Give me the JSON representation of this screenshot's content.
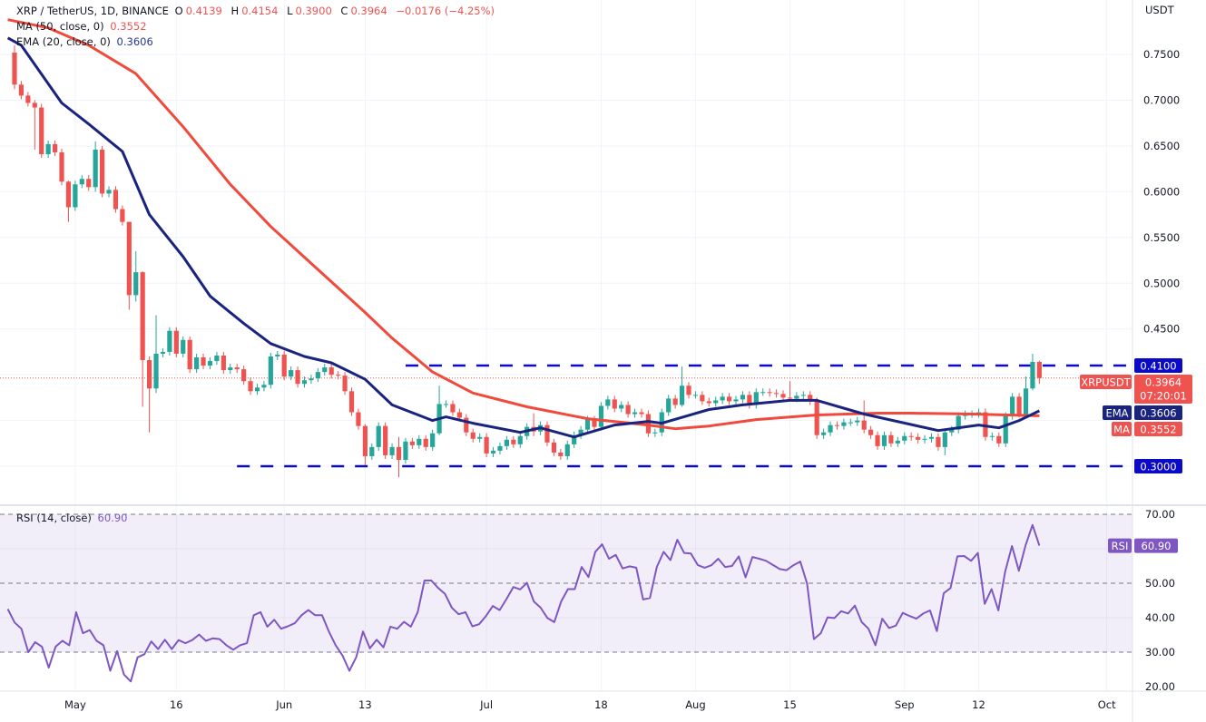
{
  "legend": {
    "symbol": "XRP / TetherUS, 1D, BINANCE",
    "o_label": "O",
    "o": "0.4139",
    "h_label": "H",
    "h": "0.4154",
    "l_label": "L",
    "l": "0.3900",
    "c_label": "C",
    "c": "0.3964",
    "change": "−0.0176 (−4.25%)",
    "ma_label": "MA (50, close, 0)",
    "ma_value": "0.3552",
    "ema_label": "EMA (20, close, 0)",
    "ema_value": "0.3606",
    "rsi_label": "RSI (14, close)",
    "rsi_value": "60.90"
  },
  "axis": {
    "currency": "USDT",
    "price_ticks": [
      {
        "label": "0.7500",
        "value": 0.75
      },
      {
        "label": "0.7000",
        "value": 0.7
      },
      {
        "label": "0.6500",
        "value": 0.65
      },
      {
        "label": "0.6000",
        "value": 0.6
      },
      {
        "label": "0.5500",
        "value": 0.55
      },
      {
        "label": "0.5000",
        "value": 0.5
      },
      {
        "label": "0.4500",
        "value": 0.45
      }
    ],
    "price_grid": [
      0.75,
      0.7,
      0.65,
      0.6,
      0.55,
      0.5,
      0.45,
      0.4,
      0.35,
      0.3
    ],
    "rsi_ticks": [
      {
        "label": "70.00",
        "value": 70
      },
      {
        "label": "50.00",
        "value": 50
      },
      {
        "label": "40.00",
        "value": 40
      },
      {
        "label": "30.00",
        "value": 30
      },
      {
        "label": "20.00",
        "value": 20
      }
    ],
    "x_ticks": [
      {
        "label": "May",
        "day": 9
      },
      {
        "label": "16",
        "day": 24
      },
      {
        "label": "Jun",
        "day": 40
      },
      {
        "label": "13",
        "day": 52
      },
      {
        "label": "Jul",
        "day": 70
      },
      {
        "label": "18",
        "day": 87
      },
      {
        "label": "Aug",
        "day": 101
      },
      {
        "label": "15",
        "day": 115
      },
      {
        "label": "Sep",
        "day": 132
      },
      {
        "label": "12",
        "day": 143
      },
      {
        "label": "Oct",
        "day": 162
      }
    ]
  },
  "badges": {
    "resistance": {
      "label": "0.4100",
      "value": 0.41
    },
    "support": {
      "label": "0.3000",
      "value": 0.3
    },
    "symbol": "XRPUSDT",
    "last_price": {
      "label": "0.3964",
      "value": 0.3964
    },
    "countdown": "07:20:01",
    "ema": {
      "name": "EMA",
      "label": "0.3606",
      "value": 0.3606
    },
    "ma": {
      "name": "MA",
      "label": "0.3552",
      "value": 0.3552
    },
    "rsi": {
      "name": "RSI",
      "label": "60.90",
      "value": 60.9
    }
  },
  "colors": {
    "up": "#26a69a",
    "down": "#ef5350",
    "ma": "#ef4a3c",
    "ema": "#1a237e",
    "level": "#0a0ac8",
    "rsi": "#7e57c2",
    "grid": "#f0f3fa"
  },
  "chart_data": {
    "type": "candlestick",
    "title": "XRP / TetherUS, 1D, BINANCE",
    "interval": "1D",
    "start_date": "Apr 22",
    "end_date": "Sep 21",
    "ylim": [
      0.28,
      0.8
    ],
    "first_open": 0.752,
    "default_wick": 0.004,
    "close": [
      0.717,
      0.705,
      0.697,
      0.692,
      0.641,
      0.652,
      0.643,
      0.611,
      0.583,
      0.608,
      0.614,
      0.605,
      0.646,
      0.598,
      0.602,
      0.581,
      0.567,
      0.487,
      0.512,
      0.416,
      0.385,
      0.423,
      0.425,
      0.448,
      0.423,
      0.438,
      0.406,
      0.419,
      0.41,
      0.415,
      0.421,
      0.405,
      0.408,
      0.406,
      0.393,
      0.382,
      0.386,
      0.389,
      0.42,
      0.422,
      0.398,
      0.405,
      0.39,
      0.394,
      0.396,
      0.403,
      0.408,
      0.4,
      0.399,
      0.382,
      0.359,
      0.344,
      0.311,
      0.321,
      0.344,
      0.312,
      0.321,
      0.307,
      0.327,
      0.323,
      0.33,
      0.321,
      0.336,
      0.368,
      0.368,
      0.359,
      0.353,
      0.337,
      0.33,
      0.332,
      0.314,
      0.317,
      0.322,
      0.329,
      0.324,
      0.333,
      0.343,
      0.338,
      0.345,
      0.326,
      0.315,
      0.311,
      0.324,
      0.334,
      0.34,
      0.351,
      0.343,
      0.366,
      0.373,
      0.363,
      0.367,
      0.357,
      0.359,
      0.357,
      0.336,
      0.337,
      0.359,
      0.374,
      0.367,
      0.388,
      0.378,
      0.378,
      0.371,
      0.369,
      0.372,
      0.376,
      0.371,
      0.373,
      0.378,
      0.367,
      0.381,
      0.381,
      0.38,
      0.379,
      0.375,
      0.374,
      0.377,
      0.378,
      0.371,
      0.334,
      0.337,
      0.345,
      0.344,
      0.348,
      0.348,
      0.35,
      0.34,
      0.334,
      0.322,
      0.334,
      0.325,
      0.328,
      0.333,
      0.332,
      0.329,
      0.33,
      0.332,
      0.321,
      0.337,
      0.34,
      0.355,
      0.357,
      0.357,
      0.359,
      0.332,
      0.333,
      0.325,
      0.355,
      0.376,
      0.357,
      0.385,
      0.414,
      0.3964
    ],
    "wick_overrides": {
      "0": [
        0.76,
        0.712
      ],
      "3": [
        0.7,
        0.646
      ],
      "8": [
        0.612,
        0.567
      ],
      "12": [
        0.655,
        0.6
      ],
      "17": [
        0.567,
        0.471
      ],
      "18": [
        0.535,
        0.48
      ],
      "19": [
        0.513,
        0.365
      ],
      "20": [
        0.42,
        0.337
      ],
      "21": [
        0.465,
        0.38
      ],
      "52": [
        0.346,
        0.301
      ],
      "57": [
        0.332,
        0.288
      ],
      "63": [
        0.388,
        0.334
      ],
      "77": [
        0.358,
        0.333
      ],
      "99": [
        0.409,
        0.365
      ],
      "115": [
        0.393,
        0.371
      ],
      "126": [
        0.372,
        0.336
      ],
      "138": [
        0.34,
        0.312
      ],
      "150": [
        0.398,
        0.354
      ],
      "151": [
        0.423,
        0.383
      ],
      "152": [
        0.4154,
        0.39
      ]
    },
    "ma50": [
      [
        -1,
        0.788
      ],
      [
        5,
        0.779
      ],
      [
        11,
        0.76
      ],
      [
        18,
        0.729
      ],
      [
        25,
        0.671
      ],
      [
        32,
        0.608
      ],
      [
        38,
        0.562
      ],
      [
        45,
        0.515
      ],
      [
        52,
        0.468
      ],
      [
        56,
        0.44
      ],
      [
        62,
        0.403
      ],
      [
        68,
        0.38
      ],
      [
        76,
        0.365
      ],
      [
        85,
        0.352
      ],
      [
        94,
        0.345
      ],
      [
        98,
        0.341
      ],
      [
        103,
        0.344
      ],
      [
        110,
        0.351
      ],
      [
        119,
        0.356
      ],
      [
        128,
        0.358
      ],
      [
        133,
        0.358
      ],
      [
        142,
        0.357
      ],
      [
        152,
        0.3552
      ]
    ],
    "ema20": [
      [
        -1,
        0.768
      ],
      [
        1,
        0.76
      ],
      [
        7,
        0.697
      ],
      [
        11,
        0.674
      ],
      [
        16,
        0.644
      ],
      [
        20,
        0.575
      ],
      [
        25,
        0.529
      ],
      [
        29,
        0.486
      ],
      [
        34,
        0.456
      ],
      [
        38,
        0.434
      ],
      [
        43,
        0.42
      ],
      [
        47,
        0.413
      ],
      [
        52,
        0.395
      ],
      [
        56,
        0.367
      ],
      [
        62,
        0.35
      ],
      [
        64,
        0.354
      ],
      [
        68,
        0.347
      ],
      [
        75,
        0.337
      ],
      [
        78,
        0.342
      ],
      [
        83,
        0.332
      ],
      [
        89,
        0.345
      ],
      [
        94,
        0.349
      ],
      [
        96,
        0.347
      ],
      [
        103,
        0.362
      ],
      [
        108,
        0.367
      ],
      [
        115,
        0.372
      ],
      [
        119,
        0.372
      ],
      [
        126,
        0.357
      ],
      [
        137,
        0.339
      ],
      [
        143,
        0.345
      ],
      [
        146,
        0.342
      ],
      [
        149,
        0.35
      ],
      [
        152,
        0.3606
      ]
    ],
    "levels": [
      {
        "value": 0.41,
        "start_day": 58
      },
      {
        "value": 0.3,
        "start_day": 33
      }
    ],
    "rsi": {
      "period": 14,
      "ylim": [
        16,
        74
      ],
      "bands": [
        30,
        50,
        70
      ],
      "values": [
        42.5,
        38.6,
        36.8,
        30,
        32.9,
        31.6,
        25.5,
        31.6,
        33.3,
        32,
        41.6,
        35.5,
        36.4,
        33.3,
        32,
        24.6,
        30.3,
        23.5,
        21.5,
        28.5,
        29.4,
        33.1,
        30.9,
        33.6,
        30.9,
        33.5,
        32.6,
        33.5,
        35.1,
        33.3,
        34,
        33.8,
        32,
        30.7,
        32,
        32.6,
        40.7,
        41.6,
        37.4,
        39.4,
        36.8,
        37.5,
        38.4,
        40.7,
        42.2,
        40.7,
        40.7,
        36,
        32,
        29,
        24.6,
        28.5,
        36,
        31.1,
        33.6,
        31.4,
        37.4,
        36.8,
        38.8,
        37.4,
        41.6,
        50.8,
        50.8,
        48.6,
        46.9,
        42.9,
        41,
        41.6,
        37.5,
        38.1,
        40.5,
        43.4,
        42.2,
        45.4,
        48.9,
        48.2,
        50.1,
        44.7,
        42.9,
        39.9,
        38.7,
        44.7,
        48.3,
        48.3,
        54.7,
        51.8,
        59.1,
        61.3,
        57.1,
        58.2,
        54.3,
        54.9,
        54.5,
        45.3,
        45.7,
        54.7,
        59.1,
        56.7,
        62.6,
        58.8,
        58.6,
        55.3,
        54.5,
        55.2,
        57.1,
        54.7,
        55,
        57.8,
        51.7,
        57.6,
        57.1,
        56.5,
        55.3,
        54.1,
        53.8,
        55.2,
        56.3,
        49.9,
        33.8,
        35.5,
        40.1,
        39.9,
        41.9,
        41.2,
        43.5,
        38.7,
        36.8,
        32,
        39.7,
        37,
        37.7,
        41.4,
        40.5,
        39.7,
        41.2,
        42.1,
        36.1,
        47.1,
        48.6,
        57.8,
        57.9,
        56.5,
        58.8,
        44,
        48.3,
        42.1,
        53.4,
        60.8,
        53.6,
        61.1,
        66.9,
        60.9
      ]
    }
  }
}
